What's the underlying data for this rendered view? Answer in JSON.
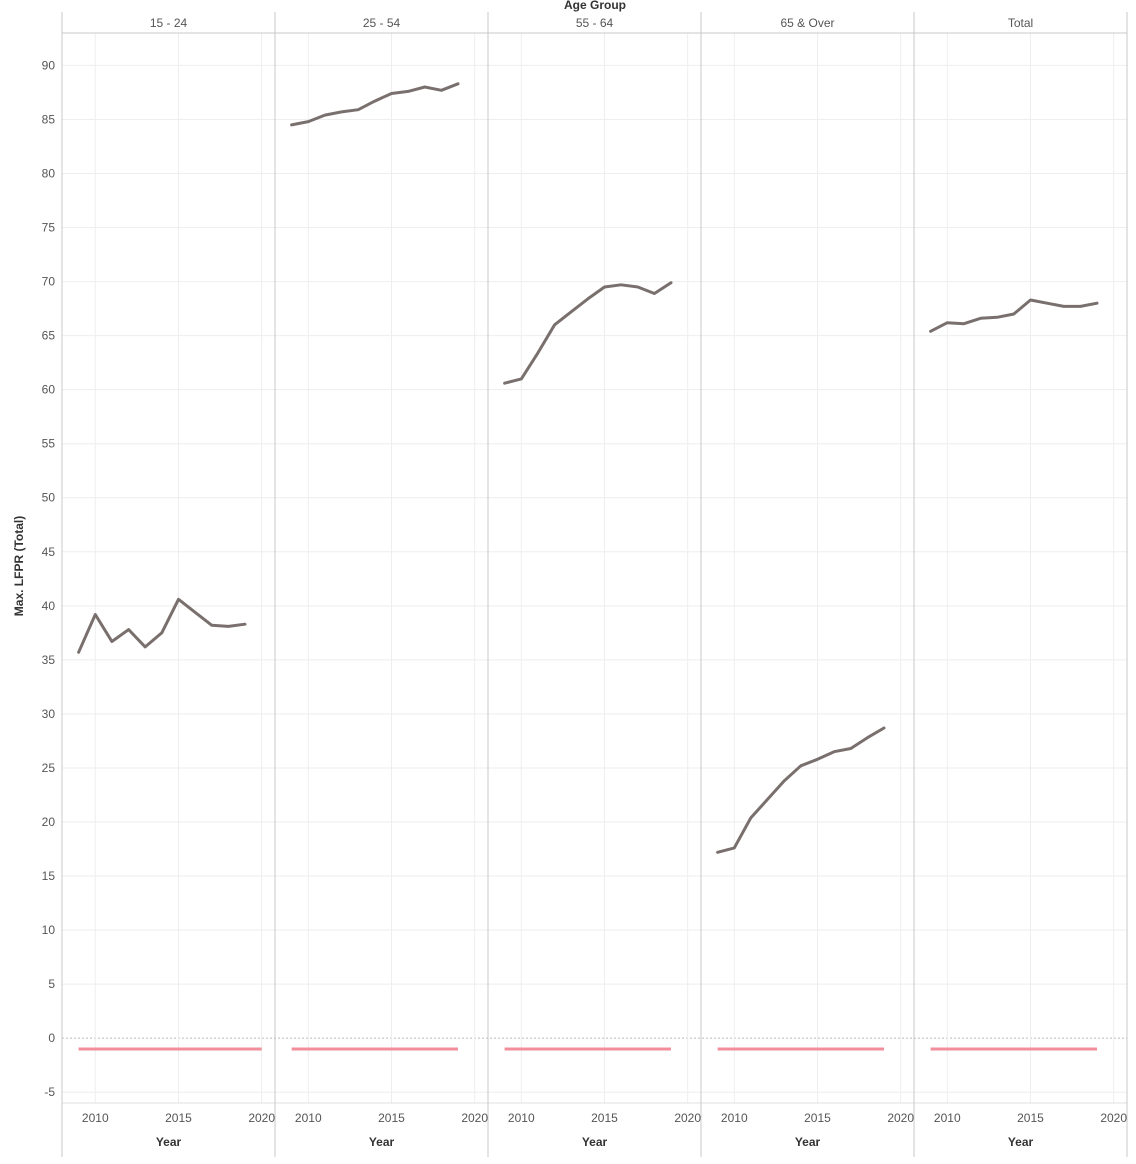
{
  "chart_data": {
    "type": "line",
    "column_header_title": "Age Group",
    "ylabel": "Max. LFPR (Total)",
    "xlabel": "Year",
    "ylim": [
      -6,
      93
    ],
    "yticks": [
      -5,
      0,
      5,
      10,
      15,
      20,
      25,
      30,
      35,
      40,
      45,
      50,
      55,
      60,
      65,
      70,
      75,
      80,
      85,
      90
    ],
    "xlim": [
      2008,
      2020.8
    ],
    "xticks": [
      2010,
      2015,
      2020
    ],
    "grid": true,
    "line_color": "#79706e",
    "reference_color": "#f28e9b",
    "panels": [
      {
        "name": "15 - 24",
        "x": [
          2009,
          2010,
          2011,
          2012,
          2013,
          2014,
          2015,
          2016,
          2017,
          2018,
          2019,
          2020
        ],
        "values": [
          35.7,
          39.2,
          36.7,
          37.8,
          36.2,
          37.5,
          40.6,
          39.4,
          38.2,
          38.1,
          38.3,
          null
        ],
        "reference": [
          -1,
          -1,
          -1,
          -1,
          -1,
          -1,
          -1,
          -1,
          -1,
          -1,
          -1,
          -1
        ]
      },
      {
        "name": "25 - 54",
        "x": [
          2009,
          2010,
          2011,
          2012,
          2013,
          2014,
          2015,
          2016,
          2017,
          2018,
          2019
        ],
        "values": [
          84.5,
          84.8,
          85.4,
          85.7,
          85.9,
          86.7,
          87.4,
          87.6,
          88.0,
          87.7,
          88.3
        ],
        "reference": [
          -1,
          -1,
          -1,
          -1,
          -1,
          -1,
          -1,
          -1,
          -1,
          -1,
          -1
        ]
      },
      {
        "name": "55 - 64",
        "x": [
          2009,
          2010,
          2011,
          2012,
          2013,
          2014,
          2015,
          2016,
          2017,
          2018,
          2019
        ],
        "values": [
          60.6,
          61.0,
          63.4,
          66.0,
          67.2,
          68.4,
          69.5,
          69.7,
          69.5,
          68.9,
          69.9
        ],
        "reference": [
          -1,
          -1,
          -1,
          -1,
          -1,
          -1,
          -1,
          -1,
          -1,
          -1,
          -1
        ]
      },
      {
        "name": "65 & Over",
        "x": [
          2009,
          2010,
          2011,
          2012,
          2013,
          2014,
          2015,
          2016,
          2017,
          2018,
          2019
        ],
        "values": [
          17.2,
          17.6,
          20.4,
          22.1,
          23.8,
          25.2,
          25.8,
          26.5,
          26.8,
          27.8,
          28.7
        ],
        "reference": [
          -1,
          -1,
          -1,
          -1,
          -1,
          -1,
          -1,
          -1,
          -1,
          -1,
          -1
        ]
      },
      {
        "name": "Total",
        "x": [
          2009,
          2010,
          2011,
          2012,
          2013,
          2014,
          2015,
          2016,
          2017,
          2018,
          2019
        ],
        "values": [
          65.4,
          66.2,
          66.1,
          66.6,
          66.7,
          67.0,
          68.3,
          68.0,
          67.7,
          67.7,
          68.0
        ],
        "reference": [
          -1,
          -1,
          -1,
          -1,
          -1,
          -1,
          -1,
          -1,
          -1,
          -1,
          -1
        ]
      }
    ]
  }
}
